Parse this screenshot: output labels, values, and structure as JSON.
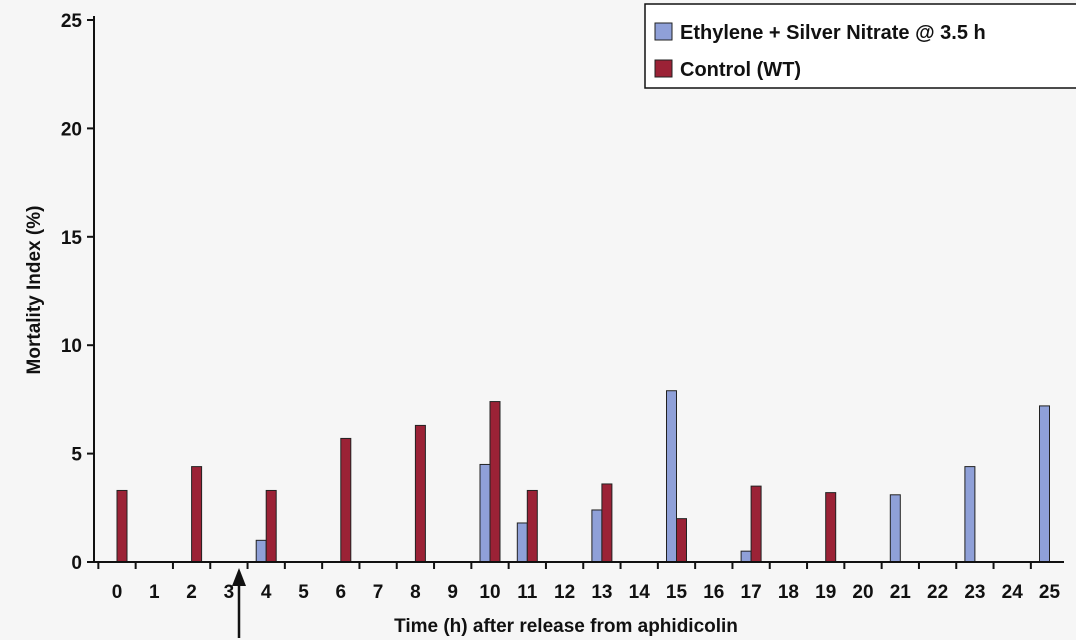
{
  "chart_data": {
    "type": "bar",
    "title": "",
    "xlabel": "Time (h) after release from aphidicolin",
    "ylabel": "Mortality Index (%)",
    "ylim": [
      0,
      25
    ],
    "yticks": [
      0,
      5,
      10,
      15,
      20,
      25
    ],
    "grid": false,
    "legend_position": "top-right",
    "categories": [
      "0",
      "1",
      "2",
      "3",
      "4",
      "5",
      "6",
      "7",
      "8",
      "9",
      "10",
      "11",
      "12",
      "13",
      "14",
      "15",
      "16",
      "17",
      "18",
      "19",
      "20",
      "21",
      "22",
      "23",
      "24",
      "25"
    ],
    "series": [
      {
        "name": "Ethylene + Silver Nitrate @ 3.5 h",
        "color": "#8fa0d8",
        "values": [
          null,
          null,
          null,
          null,
          1.0,
          null,
          null,
          null,
          null,
          null,
          4.5,
          1.8,
          null,
          2.4,
          null,
          7.9,
          null,
          0.5,
          null,
          null,
          null,
          3.1,
          null,
          4.4,
          null,
          7.2
        ]
      },
      {
        "name": "Control (WT)",
        "color": "#9b2236",
        "values": [
          3.3,
          null,
          4.4,
          null,
          3.3,
          null,
          5.7,
          null,
          6.3,
          null,
          7.4,
          3.3,
          null,
          3.6,
          null,
          2.0,
          null,
          3.5,
          null,
          3.2,
          null,
          null,
          null,
          null,
          null,
          null
        ]
      }
    ],
    "annotations": [
      {
        "type": "arrow",
        "at_x": 3.5,
        "meaning": "treatment time"
      }
    ]
  }
}
